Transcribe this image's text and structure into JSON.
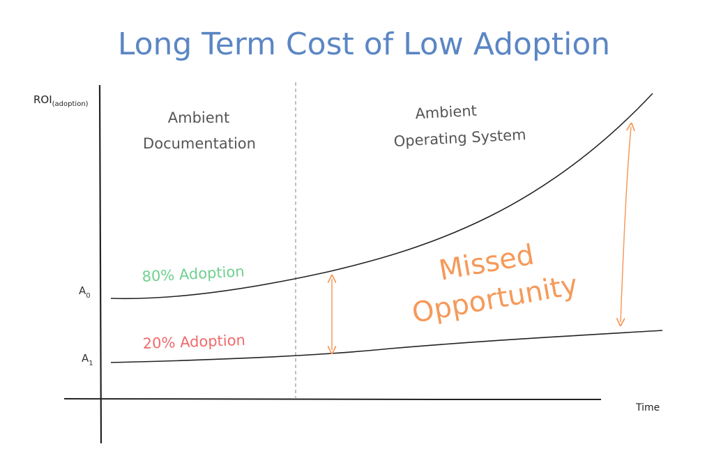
{
  "title": "Long Term Cost of Low Adoption",
  "y_axis_label": {
    "main": "ROI",
    "subscript": "(adoption)"
  },
  "x_axis_label": "Time",
  "levels": {
    "a0": {
      "main": "A",
      "subscript": "0"
    },
    "a1": {
      "main": "A",
      "subscript": "1"
    }
  },
  "phases": {
    "left": {
      "line1": "Ambient",
      "line2": "Documentation"
    },
    "right": {
      "line1": "Ambient",
      "line2": "Operating System"
    }
  },
  "series": {
    "high": {
      "label": "80% Adoption",
      "color": "#6fcf8f"
    },
    "low": {
      "label": "20% Adoption",
      "color": "#ef6b6b"
    }
  },
  "gap_annotation": {
    "line1": "Missed",
    "line2": "Opportunity",
    "color": "#f59a5a"
  },
  "colors": {
    "title": "#5b86c4",
    "text": "#555555",
    "axis": "#222222",
    "divider": "#b0b0b0"
  }
}
